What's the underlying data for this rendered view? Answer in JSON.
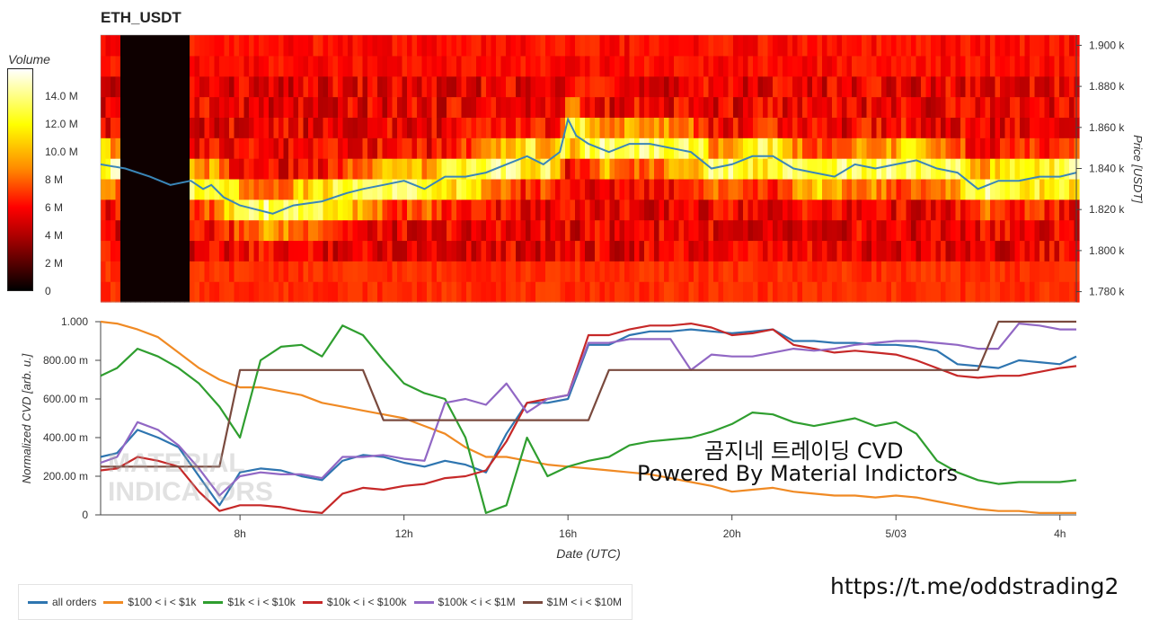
{
  "colors": {
    "all_orders": "#2e75b0",
    "s100_1k": "#f08a24",
    "s1k_10k": "#2f9e2f",
    "s10k_100k": "#c62828",
    "s100k_1m": "#9167c4",
    "s1m_10m": "#7a4a3e",
    "price_line": "#3a86b8"
  },
  "overlay": {
    "line1": "곰지네 트레이딩 CVD",
    "line2": "Powered By Material Indictors",
    "telegram": "https://t.me/oddstrading2"
  },
  "watermark": {
    "line1": "MATERIAL",
    "line2": "INDICATORS"
  },
  "chart_data": [
    {
      "type": "heatmap",
      "title": "ETH_USDT",
      "ylabel": "Price [USDT]",
      "ylim": [
        1775,
        1905
      ],
      "y_ticks": [
        {
          "v": 1780,
          "label": "1.780 k"
        },
        {
          "v": 1800,
          "label": "1.800 k"
        },
        {
          "v": 1820,
          "label": "1.820 k"
        },
        {
          "v": 1840,
          "label": "1.840 k"
        },
        {
          "v": 1860,
          "label": "1.860 k"
        },
        {
          "v": 1880,
          "label": "1.880 k"
        },
        {
          "v": 1900,
          "label": "1.900 k"
        }
      ],
      "colorbar": {
        "title": "Volume",
        "range": [
          0,
          16000000
        ],
        "ticks": [
          {
            "v": 0,
            "label": "0"
          },
          {
            "v": 2000000,
            "label": "2 M"
          },
          {
            "v": 4000000,
            "label": "4 M"
          },
          {
            "v": 6000000,
            "label": "6 M"
          },
          {
            "v": 8000000,
            "label": "8 M"
          },
          {
            "v": 10000000,
            "label": "10.0 M"
          },
          {
            "v": 12000000,
            "label": "12.0 M"
          },
          {
            "v": 14000000,
            "label": "14.0 M"
          }
        ]
      },
      "xlim_hours": [
        4.6,
        28.4
      ],
      "price_series": {
        "x": [
          4.6,
          5.2,
          5.8,
          6.3,
          6.8,
          7.1,
          7.3,
          7.6,
          8.0,
          8.4,
          8.8,
          9.3,
          10.0,
          10.6,
          11.0,
          11.5,
          12.0,
          12.5,
          13.0,
          13.5,
          14.0,
          14.5,
          15.0,
          15.4,
          15.8,
          16.0,
          16.2,
          16.5,
          17.0,
          17.5,
          18.0,
          18.5,
          19.0,
          19.5,
          20.0,
          20.5,
          21.0,
          21.5,
          22.0,
          22.5,
          23.0,
          23.5,
          24.0,
          24.5,
          25.0,
          25.5,
          26.0,
          26.5,
          27.0,
          27.5,
          28.0,
          28.4
        ],
        "y": [
          1842,
          1840,
          1836,
          1832,
          1834,
          1830,
          1832,
          1826,
          1822,
          1820,
          1818,
          1822,
          1824,
          1828,
          1830,
          1832,
          1834,
          1830,
          1836,
          1836,
          1838,
          1842,
          1846,
          1842,
          1848,
          1864,
          1856,
          1852,
          1848,
          1852,
          1852,
          1850,
          1848,
          1840,
          1842,
          1846,
          1846,
          1840,
          1838,
          1836,
          1842,
          1840,
          1842,
          1844,
          1840,
          1838,
          1830,
          1834,
          1834,
          1836,
          1836,
          1838
        ]
      }
    },
    {
      "type": "line",
      "xlabel": "Date (UTC)",
      "ylabel": "Normalized CVD [arb. u.]",
      "ylim": [
        0,
        1
      ],
      "xlim_hours": [
        4.6,
        28.4
      ],
      "y_ticks": [
        {
          "v": 0,
          "label": "0"
        },
        {
          "v": 0.2,
          "label": "200.00 m"
        },
        {
          "v": 0.4,
          "label": "400.00 m"
        },
        {
          "v": 0.6,
          "label": "600.00 m"
        },
        {
          "v": 0.8,
          "label": "800.00 m"
        },
        {
          "v": 1.0,
          "label": "1.000"
        }
      ],
      "x_ticks": [
        {
          "v": 8,
          "label": "8h"
        },
        {
          "v": 12,
          "label": "12h"
        },
        {
          "v": 16,
          "label": "16h"
        },
        {
          "v": 20,
          "label": "20h"
        },
        {
          "v": 24,
          "label": "5/03"
        },
        {
          "v": 28,
          "label": "4h"
        }
      ],
      "x": [
        4.6,
        5.0,
        5.5,
        6.0,
        6.5,
        7.0,
        7.5,
        8.0,
        8.5,
        9.0,
        9.5,
        10.0,
        10.5,
        11.0,
        11.5,
        12.0,
        12.5,
        13.0,
        13.5,
        14.0,
        14.5,
        15.0,
        15.5,
        16.0,
        16.5,
        17.0,
        17.5,
        18.0,
        18.5,
        19.0,
        19.5,
        20.0,
        20.5,
        21.0,
        21.5,
        22.0,
        22.5,
        23.0,
        23.5,
        24.0,
        24.5,
        25.0,
        25.5,
        26.0,
        26.5,
        27.0,
        27.5,
        28.0,
        28.4
      ],
      "series": [
        {
          "name": "all orders",
          "color_key": "all_orders",
          "values": [
            0.3,
            0.32,
            0.44,
            0.4,
            0.35,
            0.2,
            0.05,
            0.22,
            0.24,
            0.23,
            0.2,
            0.18,
            0.28,
            0.31,
            0.3,
            0.27,
            0.25,
            0.28,
            0.26,
            0.22,
            0.42,
            0.58,
            0.58,
            0.6,
            0.88,
            0.88,
            0.93,
            0.95,
            0.95,
            0.96,
            0.95,
            0.94,
            0.95,
            0.96,
            0.9,
            0.9,
            0.89,
            0.89,
            0.88,
            0.88,
            0.87,
            0.85,
            0.78,
            0.77,
            0.76,
            0.8,
            0.79,
            0.78,
            0.82
          ]
        },
        {
          "name": "$100 < i < $1k",
          "color_key": "s100_1k",
          "values": [
            1.0,
            0.99,
            0.96,
            0.92,
            0.84,
            0.76,
            0.7,
            0.66,
            0.66,
            0.64,
            0.62,
            0.58,
            0.56,
            0.54,
            0.52,
            0.5,
            0.46,
            0.42,
            0.35,
            0.3,
            0.3,
            0.28,
            0.26,
            0.25,
            0.24,
            0.23,
            0.22,
            0.21,
            0.19,
            0.17,
            0.15,
            0.12,
            0.13,
            0.14,
            0.12,
            0.11,
            0.1,
            0.1,
            0.09,
            0.1,
            0.09,
            0.07,
            0.05,
            0.03,
            0.02,
            0.02,
            0.01,
            0.01,
            0.01
          ]
        },
        {
          "name": "$1k < i < $10k",
          "color_key": "s1k_10k",
          "values": [
            0.72,
            0.76,
            0.86,
            0.82,
            0.76,
            0.68,
            0.56,
            0.4,
            0.8,
            0.87,
            0.88,
            0.82,
            0.98,
            0.93,
            0.8,
            0.68,
            0.63,
            0.6,
            0.4,
            0.01,
            0.05,
            0.4,
            0.2,
            0.25,
            0.28,
            0.3,
            0.36,
            0.38,
            0.39,
            0.4,
            0.43,
            0.47,
            0.53,
            0.52,
            0.48,
            0.46,
            0.48,
            0.5,
            0.46,
            0.48,
            0.42,
            0.28,
            0.22,
            0.18,
            0.16,
            0.17,
            0.17,
            0.17,
            0.18
          ]
        },
        {
          "name": "$10k < i < $100k",
          "color_key": "s10k_100k",
          "values": [
            0.23,
            0.24,
            0.3,
            0.28,
            0.25,
            0.12,
            0.02,
            0.05,
            0.05,
            0.04,
            0.02,
            0.01,
            0.11,
            0.14,
            0.13,
            0.15,
            0.16,
            0.19,
            0.2,
            0.23,
            0.38,
            0.58,
            0.6,
            0.62,
            0.93,
            0.93,
            0.96,
            0.98,
            0.98,
            0.99,
            0.97,
            0.93,
            0.94,
            0.96,
            0.88,
            0.86,
            0.84,
            0.85,
            0.84,
            0.83,
            0.8,
            0.76,
            0.72,
            0.71,
            0.72,
            0.72,
            0.74,
            0.76,
            0.77
          ]
        },
        {
          "name": "$100k < i < $1M",
          "color_key": "s100k_1m",
          "values": [
            0.27,
            0.3,
            0.48,
            0.44,
            0.36,
            0.24,
            0.1,
            0.2,
            0.22,
            0.21,
            0.21,
            0.19,
            0.3,
            0.3,
            0.31,
            0.29,
            0.28,
            0.58,
            0.6,
            0.57,
            0.68,
            0.53,
            0.6,
            0.62,
            0.89,
            0.89,
            0.91,
            0.91,
            0.91,
            0.75,
            0.83,
            0.82,
            0.82,
            0.84,
            0.86,
            0.85,
            0.86,
            0.88,
            0.89,
            0.9,
            0.9,
            0.89,
            0.88,
            0.86,
            0.86,
            0.99,
            0.98,
            0.96,
            0.96
          ]
        },
        {
          "name": "$1M < i < $10M",
          "color_key": "s1m_10m",
          "values": [
            0.25,
            0.25,
            0.25,
            0.25,
            0.25,
            0.25,
            0.25,
            0.75,
            0.75,
            0.75,
            0.75,
            0.75,
            0.75,
            0.75,
            0.49,
            0.49,
            0.49,
            0.49,
            0.49,
            0.49,
            0.49,
            0.49,
            0.49,
            0.49,
            0.49,
            0.75,
            0.75,
            0.75,
            0.75,
            0.75,
            0.75,
            0.75,
            0.75,
            0.75,
            0.75,
            0.75,
            0.75,
            0.75,
            0.75,
            0.75,
            0.75,
            0.75,
            0.75,
            0.75,
            1.0,
            1.0,
            1.0,
            1.0,
            1.0
          ]
        }
      ]
    }
  ]
}
